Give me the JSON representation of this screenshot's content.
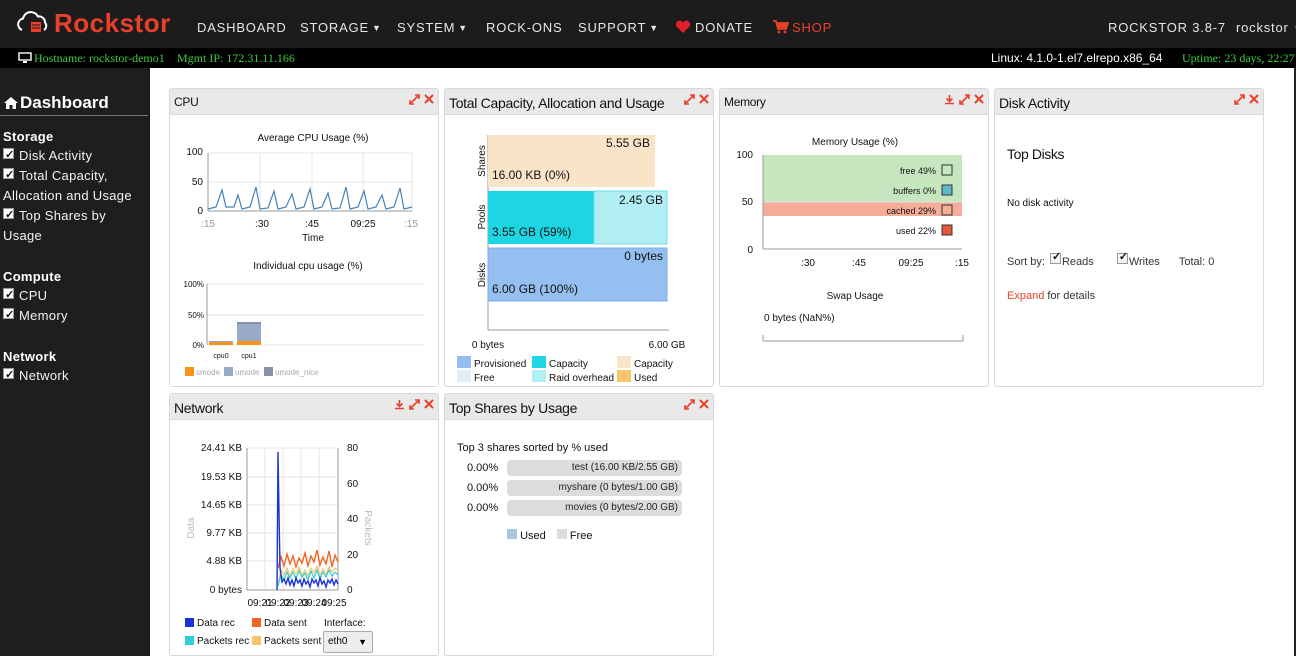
{
  "navbar": {
    "brand": "Rockstor",
    "items": [
      {
        "label": "DASHBOARD"
      },
      {
        "label": "STORAGE",
        "caret": true
      },
      {
        "label": "SYSTEM",
        "caret": true
      },
      {
        "label": "ROCK-ONS"
      },
      {
        "label": "SUPPORT",
        "caret": true
      },
      {
        "label": "DONATE"
      },
      {
        "label": "SHOP"
      }
    ],
    "version": "ROCKSTOR 3.8-7",
    "user": "rockstor"
  },
  "statusbar": {
    "hostname": "Hostname: rockstor-demo1",
    "mgmt_ip": "Mgmt IP: 172.31.11.166",
    "kernel": "Linux: 4.1.0-1.el7.elrepo.x86_64",
    "uptime": "Uptime: 23 days, 22:27"
  },
  "sidebar": {
    "title": "Dashboard",
    "sections": [
      {
        "label": "Storage",
        "items": [
          "Disk Activity",
          "Total Capacity, Allocation and Usage",
          "Top Shares by Usage"
        ]
      },
      {
        "label": "Compute",
        "items": [
          "CPU",
          "Memory"
        ]
      },
      {
        "label": "Network",
        "items": [
          "Network"
        ]
      }
    ]
  },
  "widgets": {
    "cpu": {
      "title": "CPU",
      "avg_title": "Average CPU Usage (%)",
      "avg_xlabel": "Time",
      "avg_yticks": [
        "100",
        "50",
        "0"
      ],
      "avg_xticks": [
        ":15",
        ":30",
        ":45",
        "09:25",
        ":15"
      ],
      "ind_title": "Individual cpu usage (%)",
      "ind_yticks": [
        "100%",
        "50%",
        "0%"
      ],
      "ind_cats": [
        "cpu0",
        "cpu1"
      ],
      "ind_legend": [
        "smode",
        "umode",
        "umode_nice"
      ]
    },
    "capacity": {
      "title": "Total Capacity, Allocation and Usage",
      "rows": [
        "Shares",
        "Pools",
        "Disks"
      ],
      "shares_total": "5.55 GB",
      "shares_used": "16.00 KB (0%)",
      "pools_free": "2.45 GB",
      "pools_used": "3.55 GB (59%)",
      "disks_free": "0 bytes",
      "disks_used": "6.00 GB (100%)",
      "xticks": [
        "0 bytes",
        "6.00 GB"
      ],
      "legend": [
        "Provisioned",
        "Free",
        "Capacity",
        "Raid overhead",
        "Capacity",
        "Used"
      ]
    },
    "memory": {
      "title": "Memory",
      "chart_title": "Memory Usage (%)",
      "yticks": [
        "100",
        "50",
        "0"
      ],
      "xticks": [
        ":30",
        ":45",
        "09:25",
        ":15"
      ],
      "legend": [
        "free 49%",
        "buffers 0%",
        "cached 29%",
        "used 22%"
      ],
      "swap_title": "Swap Usage",
      "swap_value": "0 bytes (NaN%)"
    },
    "disk": {
      "title": "Disk Activity",
      "top_disks": "Top Disks",
      "no_activity": "No disk activity",
      "sort_by": "Sort by:",
      "reads": "Reads",
      "writes": "Writes",
      "total": "Total: 0",
      "expand_link": "Expand",
      "expand_rest": "for details"
    },
    "network": {
      "title": "Network",
      "yticks_left": [
        "24.41 KB",
        "19.53 KB",
        "14.65 KB",
        "9.77 KB",
        "4.88 KB",
        "0 bytes"
      ],
      "yticks_right": [
        "80",
        "60",
        "40",
        "20",
        "0"
      ],
      "ylabel_left": "Data",
      "ylabel_right": "Packets",
      "xticks": [
        "09:21",
        "09:22",
        "09:23",
        "09:24",
        "09:25"
      ],
      "legend": [
        "Data rec",
        "Data sent",
        "Packets rec",
        "Packets sent"
      ],
      "interface_label": "Interface:",
      "interface_value": "eth0"
    },
    "shares": {
      "title": "Top Shares by Usage",
      "subtitle": "Top 3 shares sorted by % used",
      "rows": [
        {
          "pct": "0.00%",
          "label": "test (16.00 KB/2.55 GB)"
        },
        {
          "pct": "0.00%",
          "label": "myshare (0 bytes/1.00 GB)"
        },
        {
          "pct": "0.00%",
          "label": "movies (0 bytes/2.00 GB)"
        }
      ],
      "legend": [
        "Used",
        "Free"
      ]
    }
  },
  "colors": {
    "accent": "#e8402a",
    "status_green": "#3ecb3e",
    "cpu_line": "#4682b4",
    "cap_shares": "#f9e4c8",
    "cap_pools_used": "#1ed6e3",
    "cap_pools_free": "#b0eef3",
    "cap_disks": "#95bff0",
    "mem_free": "#c6e6c0",
    "mem_cached": "#f5ad9a",
    "net_rec": "#1833d6",
    "net_sent": "#f26522",
    "net_prec": "#2ecfd8",
    "net_psent": "#f7c46c"
  }
}
